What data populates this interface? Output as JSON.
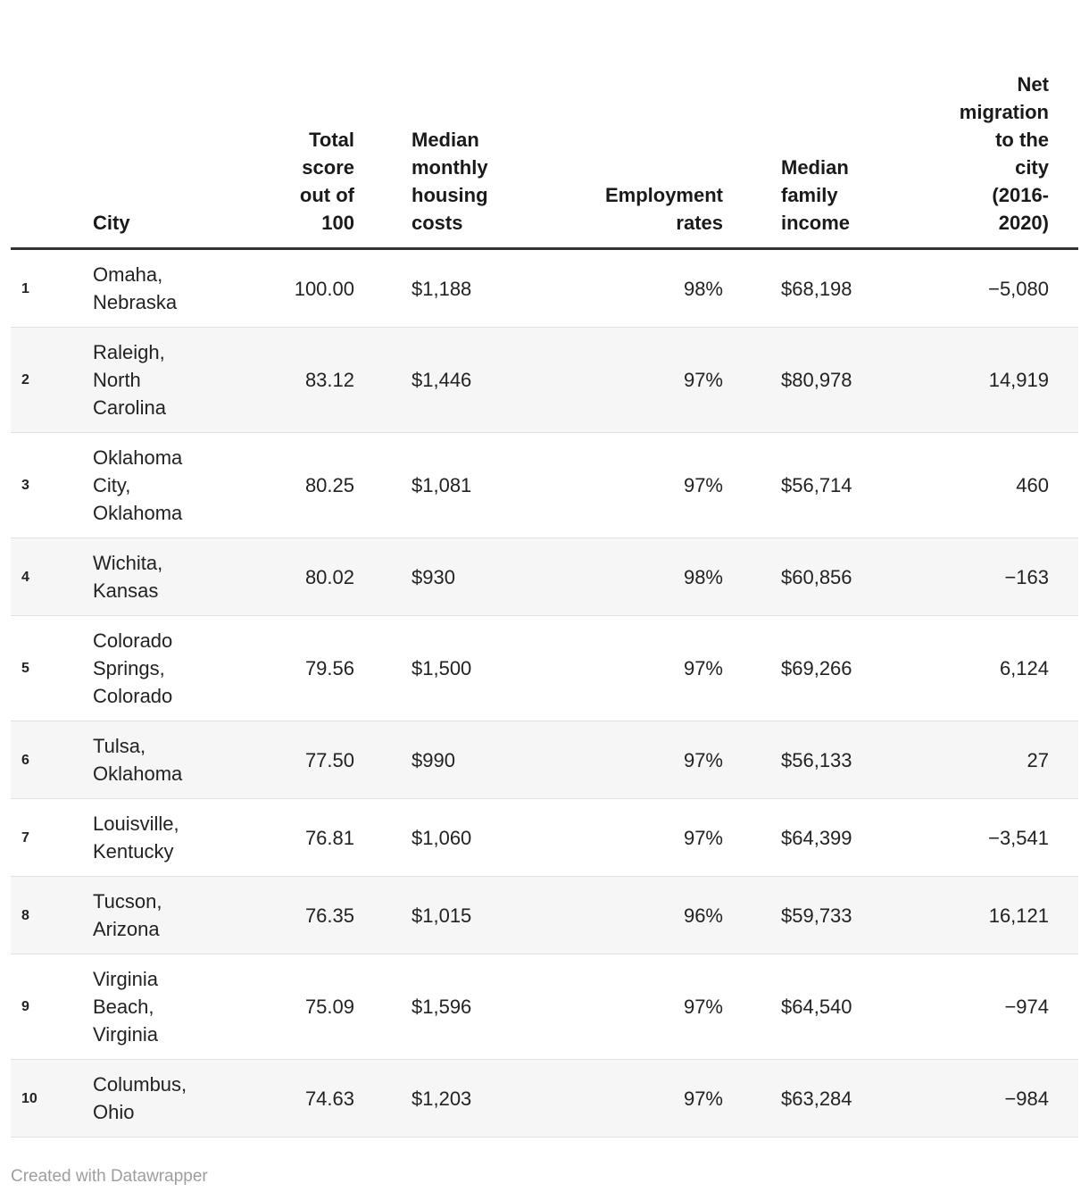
{
  "chart_data": {
    "type": "table",
    "title": "",
    "legend_position": "none",
    "columns": [
      {
        "key": "rank",
        "label": "",
        "align": "left"
      },
      {
        "key": "city",
        "label": "City",
        "align": "left"
      },
      {
        "key": "score",
        "label": "Total\nscore\nout of\n100",
        "align": "right"
      },
      {
        "key": "housing",
        "label": "Median\nmonthly\nhousing\ncosts",
        "align": "left"
      },
      {
        "key": "employment",
        "label": "Employment\nrates",
        "align": "right"
      },
      {
        "key": "income",
        "label": "Median\nfamily\nincome",
        "align": "left"
      },
      {
        "key": "migration",
        "label": "Net\nmigration\nto the\ncity\n(2016-\n2020)",
        "align": "right"
      }
    ],
    "rows": [
      {
        "rank": "1",
        "city": "Omaha,\nNebraska",
        "score": "100.00",
        "housing": "$1,188",
        "employment": "98%",
        "income": "$68,198",
        "migration": "−5,080"
      },
      {
        "rank": "2",
        "city": "Raleigh,\nNorth\nCarolina",
        "score": "83.12",
        "housing": "$1,446",
        "employment": "97%",
        "income": "$80,978",
        "migration": "14,919"
      },
      {
        "rank": "3",
        "city": "Oklahoma\nCity,\nOklahoma",
        "score": "80.25",
        "housing": "$1,081",
        "employment": "97%",
        "income": "$56,714",
        "migration": "460"
      },
      {
        "rank": "4",
        "city": "Wichita,\nKansas",
        "score": "80.02",
        "housing": "$930",
        "employment": "98%",
        "income": "$60,856",
        "migration": "−163"
      },
      {
        "rank": "5",
        "city": "Colorado\nSprings,\nColorado",
        "score": "79.56",
        "housing": "$1,500",
        "employment": "97%",
        "income": "$69,266",
        "migration": "6,124"
      },
      {
        "rank": "6",
        "city": "Tulsa,\nOklahoma",
        "score": "77.50",
        "housing": "$990",
        "employment": "97%",
        "income": "$56,133",
        "migration": "27"
      },
      {
        "rank": "7",
        "city": "Louisville,\nKentucky",
        "score": "76.81",
        "housing": "$1,060",
        "employment": "97%",
        "income": "$64,399",
        "migration": "−3,541"
      },
      {
        "rank": "8",
        "city": "Tucson,\nArizona",
        "score": "76.35",
        "housing": "$1,015",
        "employment": "96%",
        "income": "$59,733",
        "migration": "16,121"
      },
      {
        "rank": "9",
        "city": "Virginia\nBeach,\nVirginia",
        "score": "75.09",
        "housing": "$1,596",
        "employment": "97%",
        "income": "$64,540",
        "migration": "−974"
      },
      {
        "rank": "10",
        "city": "Columbus,\nOhio",
        "score": "74.63",
        "housing": "$1,203",
        "employment": "97%",
        "income": "$63,284",
        "migration": "−984"
      }
    ]
  },
  "footer": {
    "credit": "Created with Datawrapper"
  },
  "colors": {
    "header_rule": "#333333",
    "row_stripe": "#f6f6f6",
    "row_border": "#e0e0e0",
    "text": "#222222",
    "header_text": "#1a1a1a",
    "credit_text": "#9e9e9e",
    "background": "#ffffff"
  }
}
